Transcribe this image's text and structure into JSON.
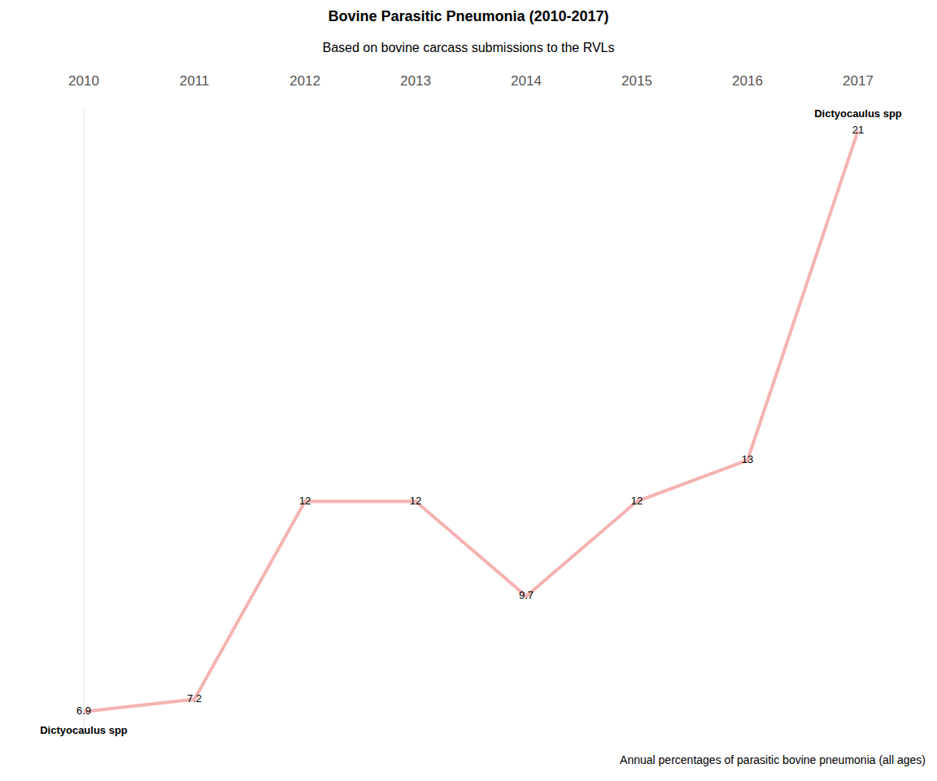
{
  "chart_data": {
    "type": "line",
    "title": "Bovine Parasitic Pneumonia (2010-2017)",
    "subtitle": "Based on bovine carcass submissions to the RVLs",
    "caption": "Annual percentages of parasitic bovine pneumonia (all ages)",
    "categories": [
      "2010",
      "2011",
      "2012",
      "2013",
      "2014",
      "2015",
      "2016",
      "2017"
    ],
    "series": [
      {
        "name": "Dictyocaulus spp",
        "color": "#f4b3b1",
        "values": [
          6.9,
          7.2,
          12,
          12,
          9.7,
          12,
          13,
          21
        ]
      }
    ],
    "ylim": [
      6.5,
      21.5
    ],
    "yticks": [],
    "grid": false,
    "data_labels": true,
    "tick_labels": "x"
  }
}
